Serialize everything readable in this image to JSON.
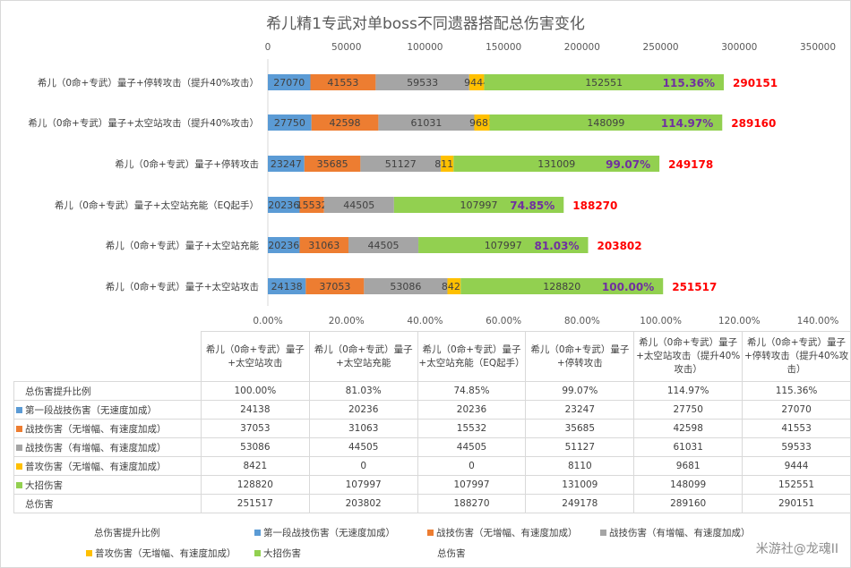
{
  "chart_data": {
    "type": "bar",
    "orientation": "horizontal",
    "stacked": true,
    "title": "希儿精1专武对单boss不同遗器搭配总伤害变化",
    "categories": [
      "希儿（0命+专武）量子+停转攻击（提升40%攻击）",
      "希儿（0命+专武）量子+太空站攻击（提升40%攻击）",
      "希儿（0命+专武）量子+停转攻击",
      "希儿（0命+专武）量子+太空站充能（EQ起手）",
      "希儿（0命+专武）量子+太空站充能",
      "希儿（0命+专武）量子+太空站攻击"
    ],
    "series": [
      {
        "name": "第一段战技伤害（无速度加成）",
        "color": "#5b9bd5",
        "values": [
          27070,
          27750,
          23247,
          20236,
          20236,
          24138
        ]
      },
      {
        "name": "战技伤害（无增幅、有速度加成）",
        "color": "#ed7d31",
        "values": [
          41553,
          42598,
          35685,
          15532,
          31063,
          37053
        ]
      },
      {
        "name": "战技伤害（有增幅、有速度加成）",
        "color": "#a5a5a5",
        "values": [
          59533,
          61031,
          51127,
          44505,
          44505,
          53086
        ]
      },
      {
        "name": "普攻伤害（无增幅、有速度加成）",
        "color": "#ffc000",
        "values": [
          9444,
          9681,
          8110,
          0,
          0,
          8421
        ]
      },
      {
        "name": "大招伤害",
        "color": "#92d050",
        "values": [
          152551,
          148099,
          131009,
          107997,
          107997,
          128820
        ]
      }
    ],
    "ratio_labels": [
      "115.36%",
      "114.97%",
      "99.07%",
      "74.85%",
      "81.03%",
      "100.00%"
    ],
    "totals": [
      290151,
      289160,
      249178,
      188270,
      203802,
      251517
    ],
    "ratio_color": "#7030a0",
    "total_color": "#ff0000",
    "x_top": {
      "ticks": [
        "0",
        "50000",
        "100000",
        "150000",
        "200000",
        "250000",
        "300000",
        "350000"
      ],
      "range": [
        0,
        350000
      ]
    },
    "x_bottom": {
      "ticks": [
        "0.00%",
        "20.00%",
        "40.00%",
        "60.00%",
        "80.00%",
        "100.00%",
        "120.00%",
        "140.00%"
      ],
      "range": [
        0,
        140
      ]
    },
    "grid": false
  },
  "table": {
    "headers": [
      "希儿（0命+专武）量子+太空站攻击",
      "希儿（0命+专武）量子+太空站充能",
      "希儿（0命+专武）量子+太空站充能（EQ起手）",
      "希儿（0命+专武）量子+停转攻击",
      "希儿（0命+专武）量子+太空站攻击（提升40%攻击）",
      "希儿（0命+专武）量子+停转攻击（提升40%攻击）"
    ],
    "rows": [
      {
        "label": "总伤害提升比例",
        "color": "",
        "values": [
          "100.00%",
          "81.03%",
          "74.85%",
          "99.07%",
          "114.97%",
          "115.36%"
        ]
      },
      {
        "label": "第一段战技伤害（无速度加成）",
        "color": "#5b9bd5",
        "values": [
          "24138",
          "20236",
          "20236",
          "23247",
          "27750",
          "27070"
        ]
      },
      {
        "label": "战技伤害（无增幅、有速度加成）",
        "color": "#ed7d31",
        "values": [
          "37053",
          "31063",
          "15532",
          "35685",
          "42598",
          "41553"
        ]
      },
      {
        "label": "战技伤害（有增幅、有速度加成）",
        "color": "#a5a5a5",
        "values": [
          "53086",
          "44505",
          "44505",
          "51127",
          "61031",
          "59533"
        ]
      },
      {
        "label": "普攻伤害（无增幅、有速度加成）",
        "color": "#ffc000",
        "values": [
          "8421",
          "0",
          "0",
          "8110",
          "9681",
          "9444"
        ]
      },
      {
        "label": "大招伤害",
        "color": "#92d050",
        "values": [
          "128820",
          "107997",
          "107997",
          "131009",
          "148099",
          "152551"
        ]
      },
      {
        "label": "总伤害",
        "color": "",
        "values": [
          "251517",
          "203802",
          "188270",
          "249178",
          "289160",
          "290151"
        ]
      }
    ]
  },
  "legend": {
    "items": [
      {
        "label": "总伤害提升比例",
        "color": ""
      },
      {
        "label": "第一段战技伤害（无速度加成）",
        "color": "#5b9bd5"
      },
      {
        "label": "战技伤害（无增幅、有速度加成）",
        "color": "#ed7d31"
      },
      {
        "label": "战技伤害（有增幅、有速度加成）",
        "color": "#a5a5a5"
      },
      {
        "label": "普攻伤害（无增幅、有速度加成）",
        "color": "#ffc000"
      },
      {
        "label": "大招伤害",
        "color": "#92d050"
      },
      {
        "label": "总伤害",
        "color": ""
      }
    ]
  },
  "watermark": "米游社@龙魂II"
}
